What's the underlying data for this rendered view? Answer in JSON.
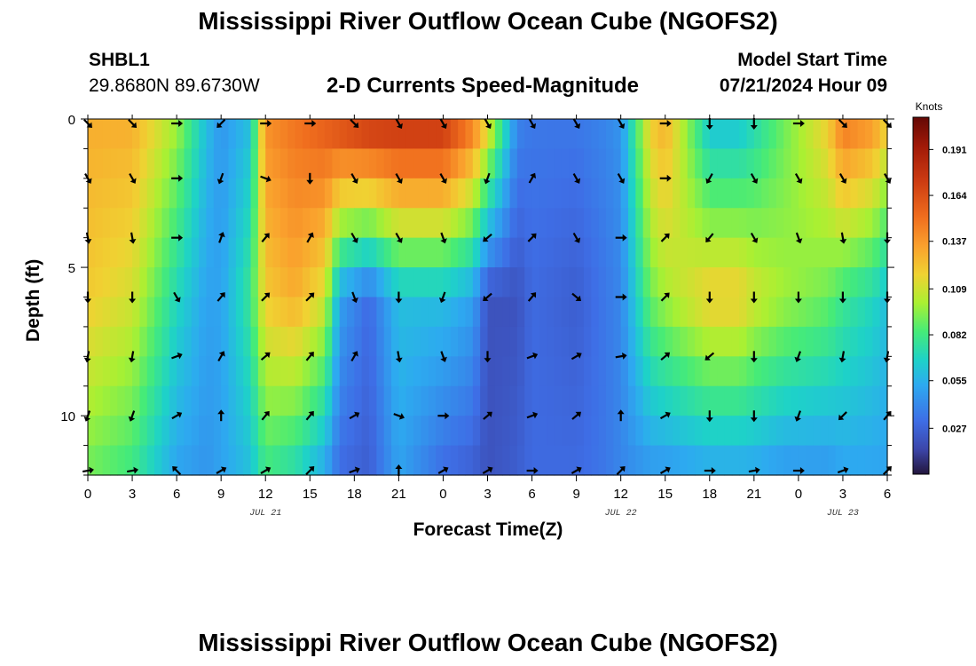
{
  "header": {
    "title": "Mississippi River Outflow Ocean Cube (NGOFS2)",
    "station": "SHBL1",
    "coords": "29.8680N  89.6730W",
    "subtitle": "2-D Currents Speed-Magnitude",
    "model_start_label": "Model Start Time",
    "model_start_value": "07/21/2024 Hour 09"
  },
  "footer": {
    "title": "Mississippi River Outflow Ocean Cube (NGOFS2)"
  },
  "chart_data": {
    "type": "heatmap",
    "title": "2-D Currents Speed-Magnitude",
    "xlabel": "Forecast Time(Z)",
    "ylabel": "Depth (ft)",
    "x_ticks": [
      "0",
      "3",
      "6",
      "9",
      "12",
      "15",
      "18",
      "21",
      "0",
      "3",
      "6",
      "9",
      "12",
      "15",
      "18",
      "21",
      "0",
      "3",
      "6"
    ],
    "x_range_hours": [
      0,
      54
    ],
    "day_labels": [
      {
        "text": "JUL 21",
        "hour": 12
      },
      {
        "text": "JUL 22",
        "hour": 36
      },
      {
        "text": "JUL 23",
        "hour": 51
      }
    ],
    "y_ticks": [
      "0",
      "5",
      "10"
    ],
    "y_range_ft": [
      0,
      12
    ],
    "colorbar": {
      "units": "Knots",
      "ticks": [
        "0.191",
        "0.164",
        "0.137",
        "0.109",
        "0.082",
        "0.055",
        "0.027"
      ],
      "tick_values": [
        0.191,
        0.164,
        0.137,
        0.109,
        0.082,
        0.055,
        0.027
      ],
      "range": [
        0,
        0.21
      ]
    },
    "depth_levels_ft": [
      0,
      1,
      2,
      3,
      4,
      5,
      6,
      7,
      8,
      9,
      10,
      11,
      12
    ],
    "speed_profile_by_hour": {
      "hours": [
        0,
        3,
        6,
        8,
        9,
        11,
        12,
        14,
        16,
        17,
        19,
        21,
        24,
        26,
        27,
        29,
        30,
        33,
        35,
        36,
        38,
        39,
        42,
        44,
        45,
        47,
        50,
        51,
        53,
        54
      ],
      "surface": [
        0.13,
        0.13,
        0.1,
        0.06,
        0.045,
        0.06,
        0.14,
        0.15,
        0.16,
        0.17,
        0.18,
        0.18,
        0.18,
        0.15,
        0.12,
        0.04,
        0.035,
        0.035,
        0.04,
        0.045,
        0.12,
        0.13,
        0.06,
        0.06,
        0.07,
        0.09,
        0.12,
        0.15,
        0.14,
        0.12
      ],
      "mid": [
        0.12,
        0.11,
        0.07,
        0.05,
        0.05,
        0.08,
        0.12,
        0.13,
        0.11,
        0.05,
        0.03,
        0.06,
        0.06,
        0.05,
        0.02,
        0.02,
        0.03,
        0.025,
        0.035,
        0.04,
        0.09,
        0.1,
        0.12,
        0.12,
        0.11,
        0.1,
        0.09,
        0.08,
        0.07,
        0.06
      ],
      "bottom": [
        0.09,
        0.08,
        0.05,
        0.045,
        0.05,
        0.06,
        0.08,
        0.07,
        0.05,
        0.03,
        0.025,
        0.05,
        0.03,
        0.025,
        0.02,
        0.025,
        0.03,
        0.03,
        0.035,
        0.04,
        0.045,
        0.045,
        0.05,
        0.05,
        0.05,
        0.045,
        0.045,
        0.05,
        0.05,
        0.05
      ]
    },
    "arrow_rows_ft": [
      0,
      2,
      4,
      6,
      8,
      10,
      12
    ],
    "arrow_hours": [
      0,
      3,
      6,
      9,
      12,
      15,
      18,
      21,
      24,
      27,
      30,
      33,
      36,
      39,
      42,
      45,
      48,
      51,
      54
    ],
    "arrow_directions_deg": [
      [
        135,
        135,
        90,
        225,
        90,
        90,
        135,
        150,
        150,
        150,
        150,
        150,
        150,
        90,
        180,
        180,
        90,
        135,
        135
      ],
      [
        150,
        150,
        90,
        200,
        110,
        180,
        150,
        150,
        150,
        200,
        30,
        150,
        150,
        90,
        210,
        150,
        150,
        150,
        150
      ],
      [
        170,
        170,
        90,
        20,
        40,
        30,
        150,
        150,
        160,
        230,
        45,
        150,
        90,
        45,
        220,
        150,
        160,
        170,
        180
      ],
      [
        180,
        180,
        150,
        40,
        45,
        45,
        160,
        180,
        200,
        230,
        40,
        130,
        90,
        45,
        180,
        180,
        180,
        180,
        180
      ],
      [
        190,
        190,
        70,
        30,
        50,
        40,
        30,
        170,
        160,
        180,
        70,
        60,
        80,
        50,
        230,
        180,
        200,
        190,
        190
      ],
      [
        200,
        200,
        60,
        0,
        40,
        40,
        60,
        110,
        90,
        50,
        70,
        50,
        0,
        60,
        180,
        180,
        200,
        225,
        40
      ],
      [
        80,
        80,
        315,
        60,
        60,
        45,
        70,
        0,
        60,
        60,
        90,
        60,
        45,
        60,
        90,
        80,
        90,
        70,
        45
      ]
    ]
  }
}
